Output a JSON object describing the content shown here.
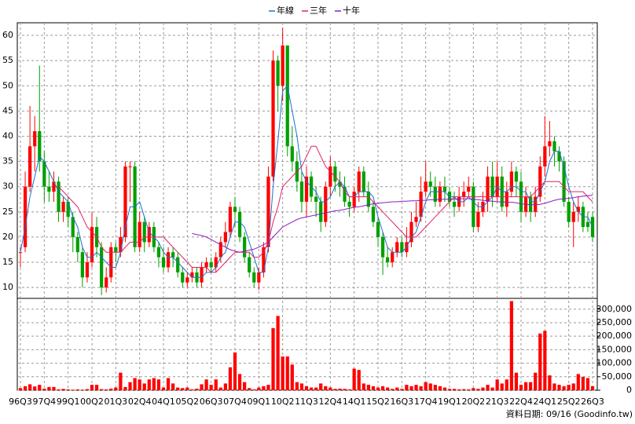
{
  "chart_data": {
    "type": "candlestick",
    "categories": [
      "96Q3",
      null,
      null,
      null,
      null,
      "97Q4",
      null,
      null,
      null,
      null,
      "99Q1",
      null,
      null,
      null,
      null,
      "00Q2",
      null,
      null,
      null,
      null,
      "01Q3",
      null,
      null,
      null,
      null,
      "02Q4",
      null,
      null,
      null,
      null,
      "04Q1",
      null,
      null,
      null,
      null,
      "05Q2",
      null,
      null,
      null,
      null,
      "06Q3",
      null,
      null,
      null,
      null,
      "07Q4",
      null,
      null,
      null,
      null,
      "09Q1",
      null,
      null,
      null,
      null,
      "10Q2",
      null,
      null,
      null,
      null,
      "11Q3",
      null,
      null,
      null,
      null,
      "12Q4",
      null,
      null,
      null,
      null,
      "14Q1",
      null,
      null,
      null,
      null,
      "15Q2",
      null,
      null,
      null,
      null,
      "16Q3",
      null,
      null,
      null,
      null,
      "17Q4",
      null,
      null,
      null,
      null,
      "19Q1",
      null,
      null,
      null,
      null,
      "20Q2",
      null,
      null,
      null,
      null,
      "21Q3",
      null,
      null,
      null,
      null,
      "22Q4",
      null,
      null,
      null,
      null,
      "24Q1",
      null,
      null,
      null,
      null,
      "25Q2",
      null,
      null,
      null,
      null,
      "26Q3"
    ],
    "open": [
      17,
      18,
      30,
      38,
      41,
      35,
      30,
      29,
      31,
      25,
      27,
      24,
      20,
      17,
      12,
      15,
      22,
      18,
      10,
      12,
      18,
      17,
      20,
      34,
      34,
      18,
      23,
      19,
      22,
      18,
      16,
      14,
      17,
      16,
      13,
      11,
      12,
      13,
      11,
      14,
      15,
      14,
      16,
      19,
      21,
      26,
      25,
      20,
      16,
      13,
      11,
      13,
      18,
      32,
      55,
      50,
      58,
      38,
      35,
      31,
      27,
      32,
      28,
      27,
      23,
      30,
      34,
      31,
      30,
      27,
      26,
      29,
      33,
      29,
      26,
      23,
      20,
      16,
      15,
      17,
      19,
      17,
      19,
      23,
      24,
      29,
      31,
      30,
      27,
      30,
      29,
      27,
      26,
      28,
      29,
      30,
      22,
      25,
      27,
      32,
      28,
      32,
      26,
      29,
      33,
      31,
      25,
      28,
      25,
      28,
      34,
      38,
      39,
      37,
      35,
      27,
      23,
      25,
      26,
      23,
      24
    ],
    "high": [
      18,
      33,
      46,
      44,
      54,
      37,
      33,
      33,
      32,
      28,
      28,
      25,
      21,
      18,
      17,
      25,
      24,
      19,
      14,
      19,
      19,
      22,
      35,
      35,
      35,
      25,
      24,
      23,
      23,
      19,
      18,
      18,
      18,
      17,
      14,
      13,
      14,
      14,
      15,
      16,
      16,
      17,
      20,
      23,
      27,
      28,
      26,
      21,
      17,
      14,
      14,
      19,
      34,
      57,
      56,
      61.5,
      58,
      42,
      37,
      33,
      34,
      33,
      30,
      28,
      31,
      36,
      35,
      33,
      32,
      28,
      30,
      34,
      34,
      31,
      27,
      24,
      21,
      18,
      18,
      20,
      20,
      22,
      25,
      27,
      32,
      35,
      33,
      32,
      31,
      32,
      30,
      29,
      30,
      31,
      32,
      31,
      27,
      29,
      34,
      35,
      35,
      34,
      31,
      35,
      34,
      33,
      30,
      29,
      30,
      36,
      44,
      43,
      40,
      38,
      36,
      28,
      27,
      28,
      27,
      25,
      25
    ],
    "low": [
      14,
      17,
      29,
      33,
      33,
      27,
      27,
      27,
      23,
      23,
      22,
      17,
      15,
      10,
      11,
      14,
      16,
      8.5,
      9,
      11,
      15,
      16,
      19,
      27,
      17,
      17,
      17,
      18,
      17,
      14,
      13,
      13,
      14,
      12,
      10,
      10,
      11,
      10,
      10,
      13,
      13,
      13,
      15,
      18,
      20,
      22,
      19,
      15,
      12,
      10,
      9.5,
      12,
      17,
      31,
      45,
      47,
      36,
      33,
      29,
      25,
      24,
      27,
      24,
      21,
      22,
      28,
      29,
      28,
      26,
      24,
      25,
      27,
      28,
      25,
      22,
      18,
      12.5,
      14,
      14,
      16,
      16,
      16,
      18,
      22,
      23,
      28,
      28,
      26,
      26,
      27,
      26,
      24,
      25,
      26,
      28,
      21,
      21,
      24,
      25,
      26,
      27,
      25,
      24,
      28,
      28,
      23,
      24,
      23,
      24,
      27,
      32,
      36,
      34,
      33,
      26,
      22,
      18,
      23,
      21,
      21,
      19
    ],
    "close": [
      17,
      30,
      38,
      41,
      35,
      30,
      29,
      31,
      25,
      27,
      24,
      20,
      17,
      12,
      15,
      22,
      18,
      10,
      12,
      18,
      17,
      20,
      34,
      34,
      18,
      23,
      19,
      22,
      18,
      16,
      14,
      17,
      16,
      13,
      11,
      12,
      13,
      11,
      14,
      15,
      14,
      16,
      19,
      21,
      26,
      25,
      20,
      16,
      13,
      11,
      13,
      18,
      32,
      55,
      50,
      58,
      38,
      35,
      31,
      27,
      32,
      28,
      27,
      23,
      30,
      34,
      31,
      30,
      27,
      26,
      29,
      33,
      29,
      26,
      23,
      20,
      16,
      15,
      17,
      19,
      17,
      19,
      23,
      24,
      29,
      31,
      30,
      27,
      30,
      29,
      27,
      26,
      28,
      29,
      30,
      22,
      25,
      27,
      32,
      28,
      32,
      26,
      29,
      33,
      31,
      25,
      28,
      25,
      28,
      34,
      38,
      39,
      37,
      35,
      27,
      23,
      25,
      26,
      22,
      22,
      20
    ],
    "volume": [
      8000,
      15000,
      22000,
      14000,
      20000,
      6000,
      12000,
      12000,
      3000,
      5000,
      3000,
      2000,
      3000,
      2000,
      4000,
      20000,
      20000,
      4000,
      3000,
      6000,
      10000,
      65000,
      12000,
      30000,
      45000,
      40000,
      25000,
      40000,
      45000,
      40000,
      10000,
      45000,
      25000,
      10000,
      8000,
      10000,
      3000,
      6000,
      22000,
      40000,
      20000,
      40000,
      10000,
      25000,
      85000,
      140000,
      60000,
      30000,
      8000,
      3000,
      10000,
      15000,
      20000,
      230000,
      275000,
      125000,
      125000,
      95000,
      30000,
      25000,
      15000,
      10000,
      10000,
      25000,
      15000,
      10000,
      5000,
      6000,
      5000,
      3000,
      80000,
      75000,
      25000,
      20000,
      15000,
      10000,
      15000,
      10000,
      5000,
      10000,
      5000,
      20000,
      15000,
      20000,
      15000,
      30000,
      25000,
      20000,
      15000,
      10000,
      5000,
      5000,
      3000,
      4000,
      3000,
      8000,
      5000,
      10000,
      20000,
      10000,
      40000,
      25000,
      40000,
      330000,
      65000,
      20000,
      30000,
      30000,
      65000,
      210000,
      220000,
      55000,
      25000,
      20000,
      15000,
      20000,
      25000,
      60000,
      50000,
      45000,
      15000
    ],
    "up_color": "#ff0000",
    "down_color": "#00a000",
    "volume_color": "#ff0000",
    "series": [
      {
        "name": "年線",
        "color": "#1f6fd0",
        "values": [
          17,
          22,
          28,
          32,
          36,
          35,
          33,
          31,
          29,
          28,
          27,
          24,
          22,
          18,
          16,
          16,
          17,
          16,
          15,
          14,
          14,
          17,
          22,
          26,
          26,
          27,
          24,
          21,
          20,
          19,
          17,
          16,
          16,
          15,
          14,
          13,
          12,
          12,
          12,
          13,
          13,
          14,
          16,
          17,
          20,
          23,
          23,
          22,
          19,
          16,
          13,
          13,
          18,
          30,
          39,
          49,
          50,
          45,
          40,
          33,
          31,
          30,
          29,
          27,
          27,
          28,
          30,
          31,
          30,
          28,
          28,
          29,
          29,
          29,
          28,
          24,
          21,
          18,
          17,
          17,
          17,
          18,
          20,
          21,
          24,
          27,
          29,
          29,
          29,
          29,
          28,
          28,
          27,
          27,
          28,
          27,
          26,
          26,
          27,
          28,
          30,
          29,
          29,
          30,
          30,
          29,
          29,
          27,
          27,
          29,
          31,
          35,
          37,
          37,
          34,
          30,
          27,
          25,
          24,
          24,
          22
        ]
      },
      {
        "name": "三年",
        "color": "#e0206a",
        "values": [
          null,
          null,
          null,
          null,
          null,
          null,
          null,
          null,
          30,
          29,
          28,
          27,
          26,
          24,
          22,
          21,
          20,
          18,
          17,
          17,
          17,
          17,
          18,
          19,
          19,
          19,
          20,
          20,
          20,
          20,
          20,
          19,
          18,
          17,
          16,
          15,
          14,
          14,
          14,
          14,
          13,
          13,
          14,
          15,
          16,
          17,
          17,
          17,
          17,
          16,
          16,
          17,
          19,
          23,
          26,
          30,
          31,
          32,
          33,
          34,
          36,
          38,
          38,
          36,
          34,
          33,
          32,
          31,
          29,
          28,
          28,
          28,
          28,
          28,
          27,
          26,
          25,
          24,
          23,
          22,
          21,
          20,
          20,
          20,
          21,
          22,
          23,
          24,
          25,
          26,
          27,
          28,
          28,
          28,
          28,
          28,
          28,
          28,
          28,
          28,
          28,
          28,
          28,
          28,
          28,
          28,
          28,
          28,
          29,
          30,
          31,
          31,
          31,
          31,
          30,
          29,
          29,
          29,
          29,
          28,
          27
        ]
      },
      {
        "name": "十年",
        "color": "#8a1fc0",
        "values": [
          null,
          null,
          null,
          null,
          null,
          null,
          null,
          null,
          null,
          null,
          null,
          null,
          null,
          null,
          null,
          null,
          null,
          null,
          null,
          null,
          null,
          null,
          null,
          null,
          null,
          null,
          null,
          null,
          null,
          null,
          null,
          null,
          null,
          null,
          null,
          null,
          20.7,
          20.5,
          20.3,
          20,
          19.5,
          19,
          18.5,
          18,
          17.5,
          17.2,
          17,
          17.2,
          17.4,
          17.6,
          18,
          18.5,
          19,
          20,
          21,
          22,
          22.5,
          23,
          23.5,
          23.8,
          24,
          24.2,
          24.4,
          24.6,
          24.8,
          25,
          25.2,
          25.3,
          25.5,
          25.7,
          25.9,
          26,
          26.2,
          26.4,
          26.6,
          26.7,
          26.8,
          26.9,
          27,
          27,
          27.1,
          27.1,
          27.2,
          27.2,
          27.3,
          27.3,
          27.4,
          27.4,
          27.5,
          27.5,
          27.5,
          27.5,
          27.6,
          27.6,
          27.6,
          27.5,
          27.4,
          27.3,
          27.2,
          27.1,
          27,
          27,
          26.9,
          26.9,
          26.8,
          26.6,
          26.5,
          26.4,
          26.4,
          26.5,
          26.7,
          27,
          27.3,
          27.5,
          27.6,
          27.7,
          27.8,
          28,
          28.1,
          28.2,
          28.3
        ]
      }
    ],
    "ylim": [
      8,
      62.5
    ],
    "yticks": [
      10,
      15,
      20,
      25,
      30,
      35,
      40,
      45,
      50,
      55,
      60
    ],
    "volume_lim": [
      0,
      340000
    ],
    "volume_ticks": [
      0,
      {
        "value": 50000,
        "label": "50,000"
      },
      {
        "value": 100000,
        "label": "100,000"
      },
      {
        "value": 150000,
        "label": "150,000"
      },
      {
        "value": 200000,
        "label": "200,000"
      },
      {
        "value": 250000,
        "label": "250,000"
      },
      {
        "value": 300000,
        "label": "300,000"
      }
    ],
    "grid": true,
    "footnote": "資料日期: 09/16 (Goodinfo.tw)"
  }
}
